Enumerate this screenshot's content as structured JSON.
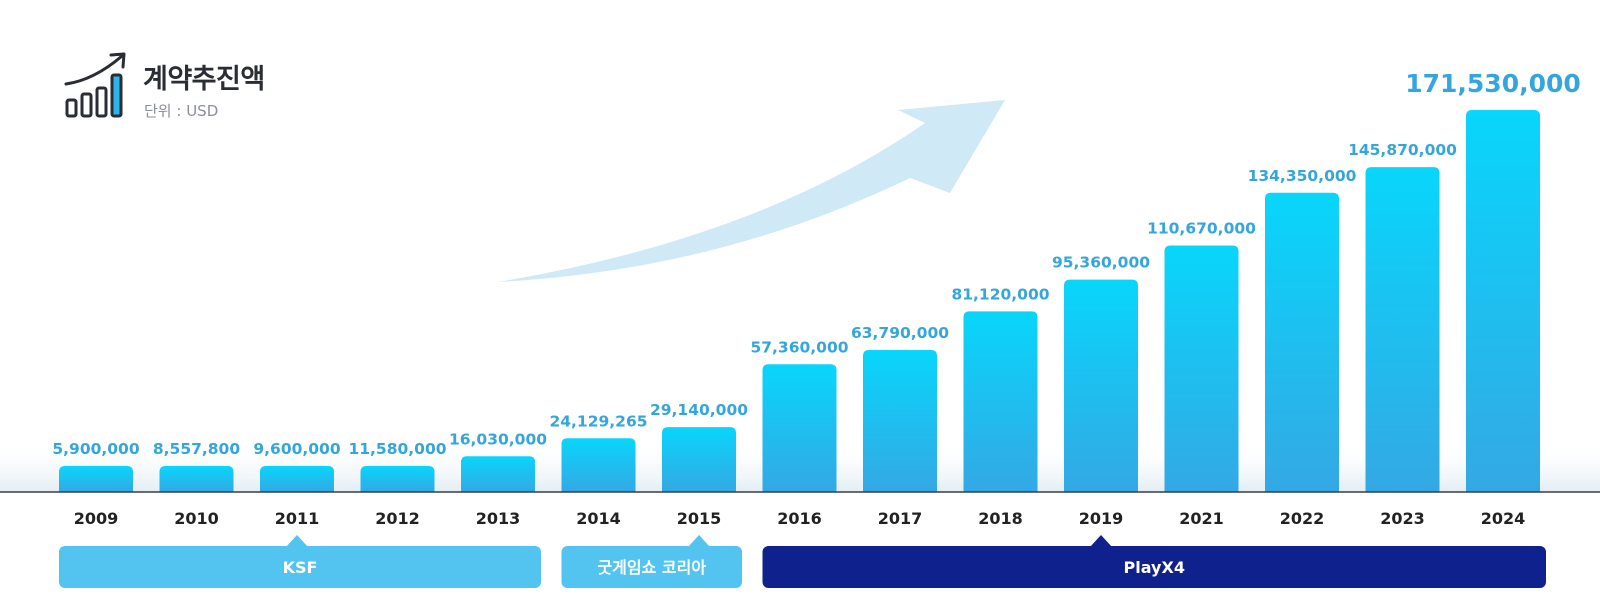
{
  "header": {
    "title": "계약추진액",
    "unit": "단위 : USD",
    "icon": "bar-growth-icon"
  },
  "colors": {
    "bar_top": "#08d6fb",
    "bar_bottom": "#34a8e4",
    "value_text": "#35a6dd",
    "arrow": "#cfe9f7",
    "ksf": "#53c3f0",
    "goodgame": "#53c3f0",
    "playx4": "#0f218c"
  },
  "chart_data": {
    "type": "bar",
    "categories": [
      "2009",
      "2010",
      "2011",
      "2012",
      "2013",
      "2014",
      "2015",
      "2016",
      "2017",
      "2018",
      "2019",
      "2021",
      "2022",
      "2023",
      "2024"
    ],
    "values": [
      5900000,
      8557800,
      9600000,
      11580000,
      16030000,
      24129265,
      29140000,
      57360000,
      63790000,
      81120000,
      95360000,
      110670000,
      134350000,
      145870000,
      171530000
    ],
    "value_labels": [
      "5,900,000",
      "8,557,800",
      "9,600,000",
      "11,580,000",
      "16,030,000",
      "24,129,265",
      "29,140,000",
      "57,360,000",
      "63,790,000",
      "81,120,000",
      "95,360,000",
      "110,670,000",
      "134,350,000",
      "145,870,000",
      "171,530,000"
    ],
    "title": "계약추진액",
    "ylabel": "",
    "xlabel": "",
    "grid": false
  },
  "eras": [
    {
      "label": "KSF",
      "start": "2009",
      "end": "2013",
      "marker": "2011",
      "color": "#53c3f0"
    },
    {
      "label": "굿게임쇼 코리아",
      "start": "2014",
      "end": "2015",
      "marker": "2015",
      "color": "#53c3f0"
    },
    {
      "label": "PlayX4",
      "start": "2016",
      "end": "2024",
      "marker": "2019",
      "color": "#0f218c"
    }
  ]
}
